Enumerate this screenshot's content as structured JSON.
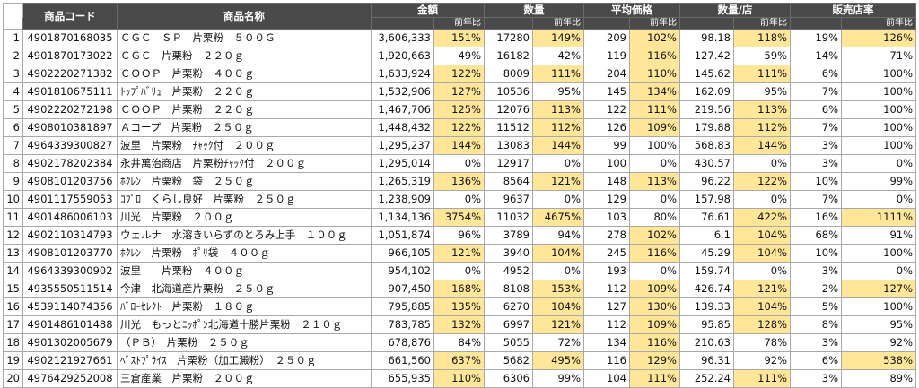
{
  "headers": {
    "code": "商品コード",
    "name": "商品名称",
    "amount": "金額",
    "quantity": "数量",
    "avg_price": "平均価格",
    "qty_per_store": "数量/店",
    "sales_store_rate": "販売店率",
    "yoy": "前年比"
  },
  "highlight_color": "#ffe699",
  "header_color": "#4a4a4a",
  "rows": [
    {
      "idx": "1",
      "code": "4901870168035",
      "name": "ＣＧＣ　ＳＰ　片栗粉　５００Ｇ",
      "amount": "3,606,333",
      "amount_yoy": "151%",
      "qty": "17280",
      "qty_yoy": "149%",
      "price": "209",
      "price_yoy": "102%",
      "qps": "98.18",
      "qps_yoy": "118%",
      "rate": "19%",
      "rate_yoy": "126%",
      "hl": [
        1,
        1,
        1,
        1,
        1
      ]
    },
    {
      "idx": "2",
      "code": "4901870173022",
      "name": "ＣＧＣ　片栗粉　２２０ｇ",
      "amount": "1,920,663",
      "amount_yoy": "49%",
      "qty": "16182",
      "qty_yoy": "42%",
      "price": "119",
      "price_yoy": "116%",
      "qps": "127.42",
      "qps_yoy": "59%",
      "rate": "14%",
      "rate_yoy": "71%",
      "hl": [
        0,
        0,
        1,
        0,
        0
      ]
    },
    {
      "idx": "3",
      "code": "4902220271382",
      "name": "ＣＯＯＰ　片栗粉　４００ｇ",
      "amount": "1,633,924",
      "amount_yoy": "122%",
      "qty": "8009",
      "qty_yoy": "111%",
      "price": "204",
      "price_yoy": "110%",
      "qps": "145.62",
      "qps_yoy": "111%",
      "rate": "6%",
      "rate_yoy": "100%",
      "hl": [
        1,
        1,
        1,
        1,
        0
      ]
    },
    {
      "idx": "4",
      "code": "4901810675111",
      "name": "ﾄｯﾌﾟﾊﾞﾘｭ　片栗粉　２２０ｇ",
      "amount": "1,532,906",
      "amount_yoy": "127%",
      "qty": "10536",
      "qty_yoy": "95%",
      "price": "145",
      "price_yoy": "134%",
      "qps": "162.09",
      "qps_yoy": "95%",
      "rate": "7%",
      "rate_yoy": "100%",
      "hl": [
        1,
        0,
        1,
        0,
        0
      ]
    },
    {
      "idx": "5",
      "code": "4902220272198",
      "name": "ＣＯＯＰ　片栗粉　２２０ｇ",
      "amount": "1,467,706",
      "amount_yoy": "125%",
      "qty": "12076",
      "qty_yoy": "113%",
      "price": "122",
      "price_yoy": "111%",
      "qps": "219.56",
      "qps_yoy": "113%",
      "rate": "6%",
      "rate_yoy": "100%",
      "hl": [
        1,
        1,
        1,
        1,
        0
      ]
    },
    {
      "idx": "6",
      "code": "4908010381897",
      "name": "Ａコープ　片栗粉　２５０ｇ",
      "amount": "1,448,432",
      "amount_yoy": "122%",
      "qty": "11512",
      "qty_yoy": "112%",
      "price": "126",
      "price_yoy": "109%",
      "qps": "179.88",
      "qps_yoy": "112%",
      "rate": "7%",
      "rate_yoy": "100%",
      "hl": [
        1,
        1,
        1,
        1,
        0
      ]
    },
    {
      "idx": "7",
      "code": "4964339300827",
      "name": "波里　片栗粉　ﾁｬｯｸ付　２００ｇ",
      "amount": "1,295,237",
      "amount_yoy": "144%",
      "qty": "13083",
      "qty_yoy": "144%",
      "price": "99",
      "price_yoy": "100%",
      "qps": "568.83",
      "qps_yoy": "144%",
      "rate": "3%",
      "rate_yoy": "100%",
      "hl": [
        1,
        1,
        0,
        1,
        0
      ]
    },
    {
      "idx": "8",
      "code": "4902178202384",
      "name": "永井萬治商店　片栗粉ﾁｬｯｸ付　２００ｇ",
      "amount": "1,295,014",
      "amount_yoy": "0%",
      "qty": "12917",
      "qty_yoy": "0%",
      "price": "100",
      "price_yoy": "0%",
      "qps": "430.57",
      "qps_yoy": "0%",
      "rate": "3%",
      "rate_yoy": "0%",
      "hl": [
        0,
        0,
        0,
        0,
        0
      ]
    },
    {
      "idx": "9",
      "code": "4908101203756",
      "name": "ﾎｸﾚﾝ　片栗粉　袋　２５０ｇ",
      "amount": "1,265,319",
      "amount_yoy": "136%",
      "qty": "8564",
      "qty_yoy": "121%",
      "price": "148",
      "price_yoy": "113%",
      "qps": "96.22",
      "qps_yoy": "122%",
      "rate": "10%",
      "rate_yoy": "99%",
      "hl": [
        1,
        1,
        1,
        1,
        0
      ]
    },
    {
      "idx": "10",
      "code": "4901117559053",
      "name": "ｺﾌﾟﾛ　くらし良好　片栗粉　２５０ｇ",
      "amount": "1,238,909",
      "amount_yoy": "0%",
      "qty": "9637",
      "qty_yoy": "0%",
      "price": "129",
      "price_yoy": "0%",
      "qps": "157.98",
      "qps_yoy": "0%",
      "rate": "7%",
      "rate_yoy": "0%",
      "hl": [
        0,
        0,
        0,
        0,
        0
      ]
    },
    {
      "idx": "11",
      "code": "4901486006103",
      "name": "川光　片栗粉　２００ｇ",
      "amount": "1,134,136",
      "amount_yoy": "3754%",
      "qty": "11032",
      "qty_yoy": "4675%",
      "price": "103",
      "price_yoy": "80%",
      "qps": "76.61",
      "qps_yoy": "422%",
      "rate": "16%",
      "rate_yoy": "1111%",
      "hl": [
        1,
        1,
        0,
        1,
        1
      ]
    },
    {
      "idx": "12",
      "code": "4902110314793",
      "name": "ウェルナ　水溶きいらずのとろみ上手　１００ｇ",
      "amount": "1,051,874",
      "amount_yoy": "96%",
      "qty": "3789",
      "qty_yoy": "94%",
      "price": "278",
      "price_yoy": "102%",
      "qps": "6.1",
      "qps_yoy": "104%",
      "rate": "68%",
      "rate_yoy": "91%",
      "hl": [
        0,
        0,
        1,
        1,
        0
      ]
    },
    {
      "idx": "13",
      "code": "4908101203770",
      "name": "ﾎｸﾚﾝ　片栗粉　ﾎﾟﾘ袋　４００ｇ",
      "amount": "966,105",
      "amount_yoy": "121%",
      "qty": "3940",
      "qty_yoy": "104%",
      "price": "245",
      "price_yoy": "116%",
      "qps": "45.29",
      "qps_yoy": "104%",
      "rate": "10%",
      "rate_yoy": "100%",
      "hl": [
        1,
        1,
        1,
        1,
        0
      ]
    },
    {
      "idx": "14",
      "code": "4964339300902",
      "name": "波里　　片栗粉　４００ｇ",
      "amount": "954,102",
      "amount_yoy": "0%",
      "qty": "4952",
      "qty_yoy": "0%",
      "price": "193",
      "price_yoy": "0%",
      "qps": "159.74",
      "qps_yoy": "0%",
      "rate": "3%",
      "rate_yoy": "0%",
      "hl": [
        0,
        0,
        0,
        0,
        0
      ]
    },
    {
      "idx": "15",
      "code": "4935550511514",
      "name": "今津　北海道産片栗粉　２５０ｇ",
      "amount": "907,450",
      "amount_yoy": "168%",
      "qty": "8108",
      "qty_yoy": "153%",
      "price": "112",
      "price_yoy": "109%",
      "qps": "426.74",
      "qps_yoy": "121%",
      "rate": "2%",
      "rate_yoy": "127%",
      "hl": [
        1,
        1,
        1,
        1,
        1
      ]
    },
    {
      "idx": "16",
      "code": "4539114074356",
      "name": "ﾊﾞﾛｰｾﾚｸﾄ　片栗粉　１８０ｇ",
      "amount": "795,885",
      "amount_yoy": "135%",
      "qty": "6270",
      "qty_yoy": "104%",
      "price": "127",
      "price_yoy": "130%",
      "qps": "139.33",
      "qps_yoy": "104%",
      "rate": "5%",
      "rate_yoy": "100%",
      "hl": [
        1,
        1,
        1,
        1,
        0
      ]
    },
    {
      "idx": "17",
      "code": "4901486101488",
      "name": "川光　もっとﾆｯﾎﾟﾝ北海道十勝片栗粉　２１０ｇ",
      "amount": "783,785",
      "amount_yoy": "132%",
      "qty": "6997",
      "qty_yoy": "121%",
      "price": "112",
      "price_yoy": "109%",
      "qps": "95.85",
      "qps_yoy": "128%",
      "rate": "8%",
      "rate_yoy": "95%",
      "hl": [
        1,
        1,
        1,
        1,
        0
      ]
    },
    {
      "idx": "18",
      "code": "4901302005679",
      "name": "（ＰＢ）　片栗粉　２５０ｇ",
      "amount": "678,876",
      "amount_yoy": "84%",
      "qty": "5055",
      "qty_yoy": "72%",
      "price": "134",
      "price_yoy": "116%",
      "qps": "210.63",
      "qps_yoy": "78%",
      "rate": "3%",
      "rate_yoy": "92%",
      "hl": [
        0,
        0,
        1,
        0,
        0
      ]
    },
    {
      "idx": "19",
      "code": "4902121927661",
      "name": "ﾍﾞｽﾄﾌﾟﾗｲｽ　片栗粉（加工澱粉）　２５０ｇ",
      "amount": "661,560",
      "amount_yoy": "637%",
      "qty": "5682",
      "qty_yoy": "495%",
      "price": "116",
      "price_yoy": "129%",
      "qps": "96.31",
      "qps_yoy": "92%",
      "rate": "6%",
      "rate_yoy": "538%",
      "hl": [
        1,
        1,
        1,
        0,
        1
      ]
    },
    {
      "idx": "20",
      "code": "4976429252008",
      "name": "三倉産業　片栗粉　２００ｇ",
      "amount": "655,935",
      "amount_yoy": "110%",
      "qty": "6306",
      "qty_yoy": "99%",
      "price": "104",
      "price_yoy": "111%",
      "qps": "252.24",
      "qps_yoy": "111%",
      "rate": "3%",
      "rate_yoy": "89%",
      "hl": [
        1,
        0,
        1,
        1,
        0
      ]
    }
  ]
}
